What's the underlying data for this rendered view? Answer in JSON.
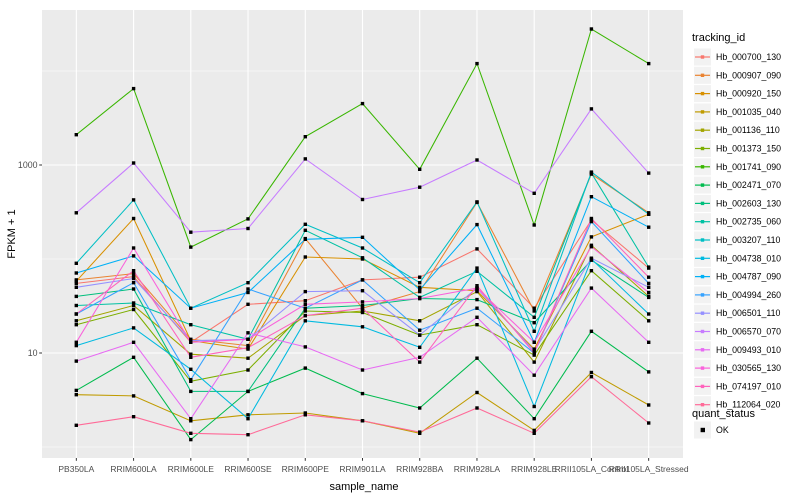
{
  "chart_data": {
    "type": "line",
    "title": "",
    "xlabel": "sample_name",
    "ylabel": "FPKM + 1",
    "y_scale": "log10",
    "ylim": [
      0.76,
      44600
    ],
    "y_ticks": [
      10,
      1000
    ],
    "y_tick_labels": [
      "10",
      "1000"
    ],
    "y_minor_gridlines": [
      1,
      100,
      10000
    ],
    "grid": true,
    "legend_position": "right",
    "legend_title": "tracking_id",
    "panel_background": "#EBEBEB",
    "gridline_color": "#FFFFFF",
    "axis_text_color": "#4D4D4D",
    "point_color": "#000000",
    "categories": [
      "PB350LA",
      "RRIM600LA",
      "RRIM600LE",
      "RRIM600SE",
      "RRIM600PE",
      "RRIM901LA",
      "RRIM928BA",
      "RRIM928LA",
      "RRIM928LE",
      "RRII105LA_Control",
      "RRII105LA_Stressed"
    ],
    "series": [
      {
        "name": "Hb_000700_130",
        "color": "#F8766D",
        "values": [
          55,
          65,
          13,
          33,
          36,
          60,
          64,
          128,
          30,
          260,
          80
        ]
      },
      {
        "name": "Hb_000907_090",
        "color": "#EA8331",
        "values": [
          60,
          70,
          14,
          12,
          165,
          30,
          45,
          400,
          28,
          800,
          310
        ]
      },
      {
        "name": "Hb_000920_150",
        "color": "#D89000",
        "values": [
          58,
          270,
          13.5,
          11,
          105,
          100,
          50,
          46,
          11,
          172,
          300
        ]
      },
      {
        "name": "Hb_001035_040",
        "color": "#C09B00",
        "values": [
          3.6,
          3.5,
          1.9,
          2.2,
          2.3,
          1.9,
          1.4,
          3.8,
          1.5,
          6.2,
          2.8
        ]
      },
      {
        "name": "Hb_001136_110",
        "color": "#A3A500",
        "values": [
          22,
          32,
          9.7,
          8.8,
          25,
          28,
          22,
          45,
          8,
          140,
          40
        ]
      },
      {
        "name": "Hb_001373_150",
        "color": "#7CAE00",
        "values": [
          20,
          29,
          5,
          6.6,
          28,
          27,
          15.5,
          20,
          9.5,
          75,
          22
        ]
      },
      {
        "name": "Hb_001741_090",
        "color": "#39B600",
        "values": [
          2100,
          6500,
          134,
          267,
          2000,
          4500,
          900,
          12000,
          230,
          28000,
          12000
        ]
      },
      {
        "name": "Hb_002471_070",
        "color": "#00BB4E",
        "values": [
          4,
          9,
          1.2,
          3.9,
          6.9,
          3.7,
          2.6,
          8.8,
          2,
          17,
          6.3
        ]
      },
      {
        "name": "Hb_002603_130",
        "color": "#00BF7D",
        "values": [
          40,
          48,
          3.9,
          3.9,
          30,
          32,
          38,
          37,
          21,
          97,
          39
        ]
      },
      {
        "name": "Hb_002735_060",
        "color": "#00C1A3",
        "values": [
          32,
          34,
          20,
          14,
          202,
          103,
          39,
          74,
          24,
          820,
          82
        ]
      },
      {
        "name": "Hb_003207_110",
        "color": "#00BFC4",
        "values": [
          90,
          425,
          30,
          56,
          234,
          131,
          56,
          405,
          17,
          840,
          300
        ]
      },
      {
        "name": "Hb_004738_010",
        "color": "#00BAE0",
        "values": [
          12,
          18.5,
          6.7,
          2,
          22,
          19,
          11.5,
          80,
          2.7,
          100,
          26
        ]
      },
      {
        "name": "Hb_004787_090",
        "color": "#00B0F6",
        "values": [
          71,
          108,
          30,
          44,
          162,
          170,
          47,
          232,
          13,
          460,
          218
        ]
      },
      {
        "name": "Hb_004994_260",
        "color": "#35A2FF",
        "values": [
          26,
          56,
          5.2,
          48,
          30,
          60,
          17.5,
          30,
          10,
          250,
          55
        ]
      },
      {
        "name": "Hb_006501_110",
        "color": "#9590FF",
        "values": [
          50,
          62,
          13.5,
          14,
          45,
          46,
          15.5,
          49,
          10.5,
          102,
          50
        ]
      },
      {
        "name": "Hb_006570_070",
        "color": "#C77CFF",
        "values": [
          310,
          1050,
          193,
          211,
          1160,
          430,
          580,
          1130,
          500,
          3950,
          820
        ]
      },
      {
        "name": "Hb_009493_010",
        "color": "#E76BF3",
        "values": [
          8.2,
          13,
          2,
          16.4,
          11.6,
          6.6,
          9,
          24,
          5.8,
          49,
          13
        ]
      },
      {
        "name": "Hb_030565_130",
        "color": "#FA62DB",
        "values": [
          13,
          131,
          13,
          14,
          33,
          35,
          38,
          49,
          13,
          135,
          44
        ]
      },
      {
        "name": "Hb_074197_010",
        "color": "#FF62BC",
        "values": [
          26,
          75,
          9,
          11.4,
          25,
          30,
          8,
          52,
          10,
          270,
          64
        ]
      },
      {
        "name": "Hb_112064_020",
        "color": "#FF6A98",
        "values": [
          1.7,
          2.1,
          1.4,
          1.35,
          2.2,
          1.9,
          1.44,
          2.6,
          1.4,
          5.6,
          1.8
        ]
      }
    ],
    "shape_legend": {
      "title": "quant_status",
      "entries": [
        {
          "label": "OK",
          "shape": "filled-square",
          "color": "#000000"
        }
      ]
    }
  }
}
